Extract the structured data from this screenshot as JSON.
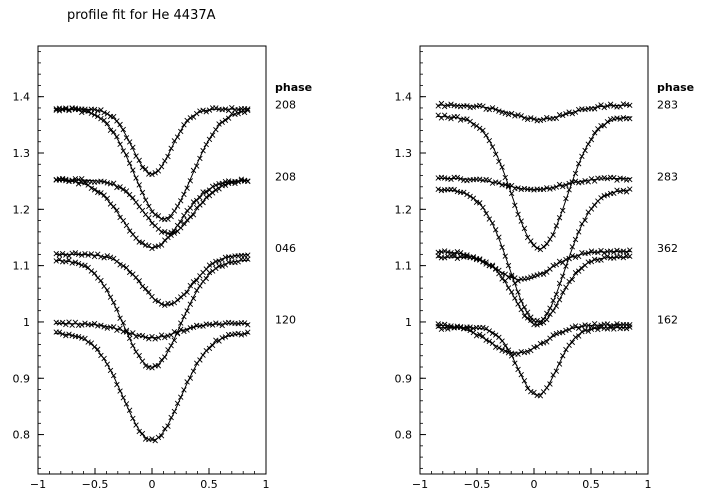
{
  "figure": {
    "title": "profile fit for He 4437A"
  },
  "chart_data": [
    {
      "type": "line",
      "name": "left-panel",
      "xlim": [
        -1,
        1
      ],
      "ylim": [
        0.73,
        1.49
      ],
      "xticks": [
        -1,
        -0.5,
        0,
        0.5,
        1
      ],
      "xtick_labels": [
        "−1",
        "−0.5",
        "0",
        "0.5",
        "1"
      ],
      "yticks": [
        0.8,
        0.9,
        1,
        1.1,
        1.2,
        1.3,
        1.4
      ],
      "ytick_labels": [
        "0.8",
        "0.9",
        "1",
        "1.1",
        "1.2",
        "1.3",
        "1.4"
      ],
      "side_header": "phase",
      "side_labels": [
        {
          "text": "208",
          "y": 1.386
        },
        {
          "text": "208",
          "y": 1.258
        },
        {
          "text": "046",
          "y": 1.131
        },
        {
          "text": "120",
          "y": 1.004
        }
      ],
      "profiles": [
        {
          "continuum": 1.378,
          "depth": 0.115,
          "center": 0.0,
          "width": 0.17,
          "slope": 0.0
        },
        {
          "continuum": 1.378,
          "depth": 0.195,
          "center": 0.1,
          "width": 0.25,
          "slope": 0.0
        },
        {
          "continuum": 1.252,
          "depth": 0.095,
          "center": 0.15,
          "width": 0.22,
          "slope": 0.0
        },
        {
          "continuum": 1.252,
          "depth": 0.12,
          "center": 0.0,
          "width": 0.25,
          "slope": 0.0
        },
        {
          "continuum": 1.12,
          "depth": 0.09,
          "center": 0.13,
          "width": 0.22,
          "slope": 0.0
        },
        {
          "continuum": 1.11,
          "depth": 0.19,
          "center": 0.0,
          "width": 0.25,
          "slope": 0.0
        },
        {
          "continuum": 0.997,
          "depth": 0.025,
          "center": 0.0,
          "width": 0.22,
          "slope": 0.0
        },
        {
          "continuum": 0.98,
          "depth": 0.19,
          "center": 0.0,
          "width": 0.25,
          "slope": 0.0
        }
      ]
    },
    {
      "type": "line",
      "name": "right-panel",
      "xlim": [
        -1,
        1
      ],
      "ylim": [
        0.73,
        1.49
      ],
      "xticks": [
        -1,
        -0.5,
        0,
        0.5,
        1
      ],
      "xtick_labels": [
        "−1",
        "−0.5",
        "0",
        "0.5",
        "1"
      ],
      "yticks": [
        0.8,
        0.9,
        1,
        1.1,
        1.2,
        1.3,
        1.4
      ],
      "ytick_labels": [
        "0.8",
        "0.9",
        "1",
        "1.1",
        "1.2",
        "1.3",
        "1.4"
      ],
      "side_header": "phase",
      "side_labels": [
        {
          "text": "283",
          "y": 1.386
        },
        {
          "text": "283",
          "y": 1.258
        },
        {
          "text": "362",
          "y": 1.131
        },
        {
          "text": "162",
          "y": 1.004
        }
      ],
      "profiles": [
        {
          "continuum": 1.385,
          "depth": 0.025,
          "center": 0.05,
          "width": 0.25,
          "slope": 0.0
        },
        {
          "continuum": 1.365,
          "depth": 0.235,
          "center": 0.05,
          "width": 0.24,
          "slope": 0.0
        },
        {
          "continuum": 1.255,
          "depth": 0.02,
          "center": 0.0,
          "width": 0.25,
          "slope": 0.0
        },
        {
          "continuum": 1.235,
          "depth": 0.235,
          "center": 0.03,
          "width": 0.24,
          "slope": 0.0
        },
        {
          "continuum": 1.125,
          "depth": 0.05,
          "center": -0.1,
          "width": 0.24,
          "slope": 0.0
        },
        {
          "continuum": 1.115,
          "depth": 0.12,
          "center": 0.03,
          "width": 0.2,
          "slope": 0.0
        },
        {
          "continuum": 0.995,
          "depth": 0.05,
          "center": -0.15,
          "width": 0.24,
          "slope": 0.0
        },
        {
          "continuum": 0.99,
          "depth": 0.12,
          "center": 0.03,
          "width": 0.17,
          "slope": 0.0
        }
      ]
    }
  ]
}
